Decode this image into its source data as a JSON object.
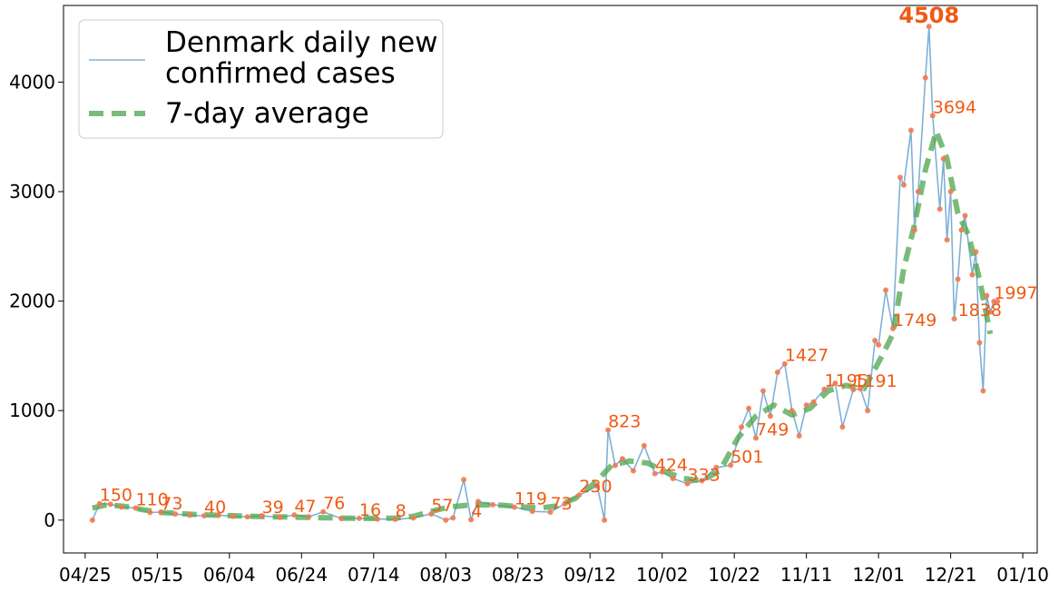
{
  "colors": {
    "daily_line": "#7fb0d6",
    "points": "#f07a50",
    "average": "#4ca64c",
    "labels": "#f05a14",
    "axis": "#000000"
  },
  "chart_data": {
    "type": "line",
    "title": "",
    "xlabel": "",
    "ylabel": "",
    "xlim": [
      "2020-04-19",
      "2021-01-14"
    ],
    "ylim": [
      -300,
      4700
    ],
    "grid": false,
    "legend_position": "top-left",
    "x_ticks": [
      "04/25",
      "05/15",
      "06/04",
      "06/24",
      "07/14",
      "08/03",
      "08/23",
      "09/12",
      "10/02",
      "10/22",
      "11/11",
      "12/01",
      "12/21",
      "01/10"
    ],
    "x_tick_dates": [
      "2020-04-25",
      "2020-05-15",
      "2020-06-04",
      "2020-06-24",
      "2020-07-14",
      "2020-08-03",
      "2020-08-23",
      "2020-09-12",
      "2020-10-02",
      "2020-10-22",
      "2020-11-11",
      "2020-12-01",
      "2020-12-21",
      "2021-01-10"
    ],
    "y_ticks": [
      0,
      1000,
      2000,
      3000,
      4000
    ],
    "series": [
      {
        "name": "Denmark daily new confirmed cases",
        "x": [
          "2020-04-27",
          "2020-04-29",
          "2020-05-02",
          "2020-05-05",
          "2020-05-09",
          "2020-05-13",
          "2020-05-16",
          "2020-05-20",
          "2020-05-24",
          "2020-05-28",
          "2020-06-01",
          "2020-06-05",
          "2020-06-09",
          "2020-06-13",
          "2020-06-18",
          "2020-06-22",
          "2020-06-26",
          "2020-06-30",
          "2020-07-05",
          "2020-07-10",
          "2020-07-15",
          "2020-07-20",
          "2020-07-25",
          "2020-07-30",
          "2020-08-03",
          "2020-08-05",
          "2020-08-08",
          "2020-08-10",
          "2020-08-12",
          "2020-08-16",
          "2020-08-22",
          "2020-08-27",
          "2020-09-01",
          "2020-09-05",
          "2020-09-09",
          "2020-09-14",
          "2020-09-16",
          "2020-09-17",
          "2020-09-19",
          "2020-09-21",
          "2020-09-24",
          "2020-09-27",
          "2020-09-30",
          "2020-10-02",
          "2020-10-05",
          "2020-10-09",
          "2020-10-13",
          "2020-10-17",
          "2020-10-21",
          "2020-10-24",
          "2020-10-26",
          "2020-10-28",
          "2020-10-30",
          "2020-11-01",
          "2020-11-03",
          "2020-11-05",
          "2020-11-07",
          "2020-11-09",
          "2020-11-11",
          "2020-11-13",
          "2020-11-16",
          "2020-11-19",
          "2020-11-21",
          "2020-11-24",
          "2020-11-26",
          "2020-11-28",
          "2020-11-30",
          "2020-12-01",
          "2020-12-03",
          "2020-12-05",
          "2020-12-07",
          "2020-12-08",
          "2020-12-10",
          "2020-12-11",
          "2020-12-12",
          "2020-12-14",
          "2020-12-15",
          "2020-12-16",
          "2020-12-18",
          "2020-12-19",
          "2020-12-20",
          "2020-12-21",
          "2020-12-22",
          "2020-12-23",
          "2020-12-24",
          "2020-12-25",
          "2020-12-27",
          "2020-12-28",
          "2020-12-29",
          "2020-12-30",
          "2020-12-31",
          "2021-01-01",
          "2021-01-02",
          "2021-01-03"
        ],
        "values": [
          0,
          150,
          145,
          120,
          110,
          70,
          73,
          55,
          45,
          40,
          45,
          35,
          30,
          39,
          25,
          47,
          30,
          76,
          15,
          16,
          10,
          8,
          20,
          57,
          0,
          20,
          370,
          4,
          170,
          140,
          119,
          80,
          73,
          150,
          230,
          310,
          0,
          823,
          500,
          560,
          450,
          680,
          424,
          440,
          380,
          333,
          360,
          480,
          501,
          850,
          1020,
          749,
          1180,
          950,
          1350,
          1427,
          1000,
          770,
          1050,
          1080,
          1195,
          1250,
          850,
          1191,
          1200,
          1000,
          1640,
          1600,
          2100,
          1749,
          3130,
          3060,
          3560,
          2650,
          3000,
          4040,
          4508,
          3694,
          2840,
          3300,
          2560,
          3000,
          1838,
          2200,
          2650,
          2780,
          2240,
          2450,
          1620,
          1180,
          2050,
          1900,
          1997,
          1997
        ]
      },
      {
        "name": "7-day average",
        "x": [
          "2020-04-27",
          "2020-05-01",
          "2020-05-06",
          "2020-05-11",
          "2020-05-16",
          "2020-05-21",
          "2020-05-26",
          "2020-05-31",
          "2020-06-05",
          "2020-06-10",
          "2020-06-15",
          "2020-06-20",
          "2020-06-25",
          "2020-06-30",
          "2020-07-05",
          "2020-07-10",
          "2020-07-15",
          "2020-07-20",
          "2020-07-25",
          "2020-07-30",
          "2020-08-04",
          "2020-08-09",
          "2020-08-14",
          "2020-08-19",
          "2020-08-24",
          "2020-08-29",
          "2020-09-03",
          "2020-09-08",
          "2020-09-13",
          "2020-09-18",
          "2020-09-23",
          "2020-09-28",
          "2020-10-03",
          "2020-10-08",
          "2020-10-13",
          "2020-10-18",
          "2020-10-23",
          "2020-10-28",
          "2020-11-02",
          "2020-11-07",
          "2020-11-12",
          "2020-11-17",
          "2020-11-22",
          "2020-11-27",
          "2020-12-02",
          "2020-12-05",
          "2020-12-08",
          "2020-12-11",
          "2020-12-14",
          "2020-12-17",
          "2020-12-20",
          "2020-12-23",
          "2020-12-26",
          "2020-12-29",
          "2021-01-01"
        ],
        "values": [
          110,
          140,
          125,
          95,
          70,
          60,
          50,
          45,
          40,
          35,
          30,
          28,
          25,
          22,
          18,
          16,
          15,
          18,
          35,
          80,
          120,
          135,
          140,
          135,
          120,
          110,
          130,
          200,
          330,
          500,
          540,
          520,
          440,
          380,
          360,
          450,
          750,
          950,
          1050,
          960,
          1020,
          1180,
          1230,
          1200,
          1500,
          1700,
          2300,
          2700,
          3200,
          3550,
          3300,
          2800,
          2600,
          2200,
          1700
        ]
      }
    ],
    "annotations": [
      {
        "text": "150",
        "x": "2020-04-29",
        "y": 150
      },
      {
        "text": "110",
        "x": "2020-05-09",
        "y": 110
      },
      {
        "text": "73",
        "x": "2020-05-16",
        "y": 73
      },
      {
        "text": "40",
        "x": "2020-05-28",
        "y": 40
      },
      {
        "text": "39",
        "x": "2020-06-13",
        "y": 39
      },
      {
        "text": "47",
        "x": "2020-06-22",
        "y": 47
      },
      {
        "text": "76",
        "x": "2020-06-30",
        "y": 76
      },
      {
        "text": "16",
        "x": "2020-07-10",
        "y": 16
      },
      {
        "text": "8",
        "x": "2020-07-20",
        "y": 8
      },
      {
        "text": "57",
        "x": "2020-07-30",
        "y": 57
      },
      {
        "text": "4",
        "x": "2020-08-10",
        "y": 4
      },
      {
        "text": "119",
        "x": "2020-08-22",
        "y": 119
      },
      {
        "text": "73",
        "x": "2020-09-01",
        "y": 73
      },
      {
        "text": "230",
        "x": "2020-09-09",
        "y": 230
      },
      {
        "text": "823",
        "x": "2020-09-17",
        "y": 823
      },
      {
        "text": "424",
        "x": "2020-09-30",
        "y": 424
      },
      {
        "text": "333",
        "x": "2020-10-09",
        "y": 333
      },
      {
        "text": "501",
        "x": "2020-10-21",
        "y": 501
      },
      {
        "text": "749",
        "x": "2020-10-28",
        "y": 749
      },
      {
        "text": "1427",
        "x": "2020-11-05",
        "y": 1427
      },
      {
        "text": "1195",
        "x": "2020-11-16",
        "y": 1195
      },
      {
        "text": "1191",
        "x": "2020-11-24",
        "y": 1191
      },
      {
        "text": "1749",
        "x": "2020-12-05",
        "y": 1749
      },
      {
        "text": "4508",
        "x": "2020-12-15",
        "y": 4508,
        "emphasis": true
      },
      {
        "text": "3694",
        "x": "2020-12-16",
        "y": 3694
      },
      {
        "text": "1838",
        "x": "2020-12-23",
        "y": 1838
      },
      {
        "text": "1997",
        "x": "2021-01-02",
        "y": 1997
      }
    ],
    "legend": {
      "entries": [
        {
          "label": "Denmark daily new confirmed cases",
          "style": "solid"
        },
        {
          "label": "7-day average",
          "style": "dashed"
        }
      ]
    }
  }
}
